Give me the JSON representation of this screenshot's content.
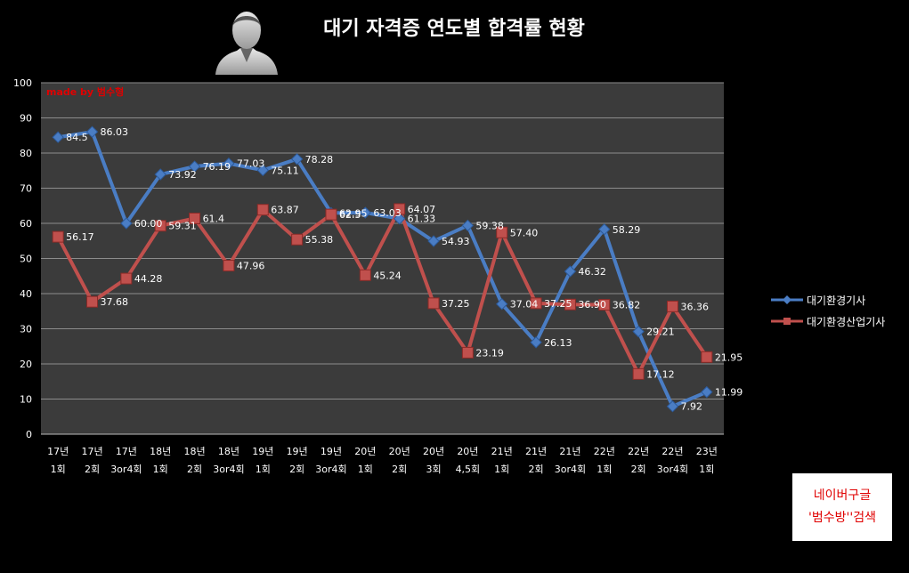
{
  "chart_data": {
    "type": "line",
    "title": "대기 자격증 연도별 합격률 현황",
    "ylim": [
      0,
      100
    ],
    "yticks": [
      0,
      10,
      20,
      30,
      40,
      50,
      60,
      70,
      80,
      90,
      100
    ],
    "grid": true,
    "legend_position": "right",
    "categories": [
      [
        "17년",
        "1회"
      ],
      [
        "17년",
        "2회"
      ],
      [
        "17년",
        "3or4회"
      ],
      [
        "18년",
        "1회"
      ],
      [
        "18년",
        "2회"
      ],
      [
        "18년",
        "3or4회"
      ],
      [
        "19년",
        "1회"
      ],
      [
        "19년",
        "2회"
      ],
      [
        "19년",
        "3or4회"
      ],
      [
        "20년",
        "1회"
      ],
      [
        "20년",
        "2회"
      ],
      [
        "20년",
        "3회"
      ],
      [
        "20년",
        "4,5회"
      ],
      [
        "21년",
        "1회"
      ],
      [
        "21년",
        "2회"
      ],
      [
        "21년",
        "3or4회"
      ],
      [
        "22년",
        "1회"
      ],
      [
        "22년",
        "2회"
      ],
      [
        "22년",
        "3or4회"
      ],
      [
        "23년",
        "1회"
      ]
    ],
    "series": [
      {
        "name": "대기환경기사",
        "color": "#4a7dc4",
        "marker": "diamond",
        "values": [
          84.5,
          86.03,
          60.0,
          73.92,
          76.19,
          77.03,
          75.11,
          78.28,
          62.95,
          63.03,
          61.33,
          54.93,
          59.38,
          37.04,
          26.13,
          46.32,
          58.29,
          29.21,
          7.92,
          11.99
        ],
        "labels": [
          "84.5",
          "86.03",
          "60.00",
          "73.92",
          "76.19",
          "77.03",
          "75.11",
          "78.28",
          "62.95",
          "63.03",
          "61.33",
          "54.93",
          "59.38",
          "37.04",
          "26.13",
          "46.32",
          "58.29",
          "29.21",
          "7.92",
          "11.99"
        ]
      },
      {
        "name": "대기환경산업기사",
        "color": "#c0504d",
        "marker": "square",
        "values": [
          56.17,
          37.68,
          44.28,
          59.31,
          61.4,
          47.96,
          63.87,
          55.38,
          62.5,
          45.24,
          64.07,
          37.25,
          23.19,
          57.4,
          37.25,
          36.9,
          36.82,
          17.12,
          36.36,
          21.95
        ],
        "labels": [
          "56.17",
          "37.68",
          "44.28",
          "59.31",
          "61.4",
          "47.96",
          "63.87",
          "55.38",
          "62.5",
          "45.24",
          "64.07",
          "37.25",
          "23.19",
          "57.40",
          "37.25",
          "36.90",
          "36.82",
          "17.12",
          "36.36",
          "21.95"
        ]
      }
    ]
  },
  "watermark": "made by  범수형",
  "badge": {
    "line1": "네이버구글",
    "line2": "'범수방''검색"
  },
  "avatar_icon": "person-silhouette-icon"
}
